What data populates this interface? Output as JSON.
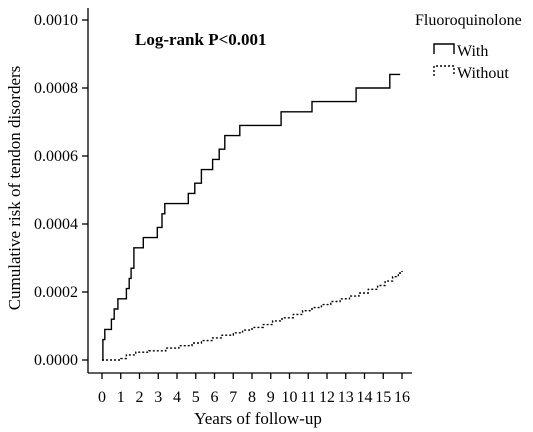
{
  "chart_data": {
    "type": "line",
    "title": "",
    "annotation": "Log-rank P<0.001",
    "xlabel": "Years of follow-up",
    "ylabel": "Cumulative risk of tendon disorders",
    "xlim": [
      0,
      16
    ],
    "ylim": [
      0,
      0.001
    ],
    "x_ticks": [
      0,
      1,
      2,
      3,
      4,
      5,
      6,
      7,
      8,
      9,
      10,
      11,
      12,
      13,
      14,
      15,
      16
    ],
    "x_tick_labels": [
      "0",
      "1",
      "2",
      "3",
      "4",
      "5",
      "6",
      "7",
      "8",
      "9",
      "10",
      "11",
      "12",
      "13",
      "14",
      "15",
      "16"
    ],
    "y_ticks": [
      0,
      0.0002,
      0.0004,
      0.0006,
      0.0008,
      0.001
    ],
    "y_tick_labels": [
      "0.0000",
      "0.0002",
      "0.0004",
      "0.0006",
      "0.0008",
      "0.0010"
    ],
    "grid": false,
    "legend": {
      "title": "Fluoroquinolone",
      "placement": "top-right"
    },
    "series": [
      {
        "name": "With",
        "style": "solid",
        "step": true,
        "x": [
          0,
          0.05,
          0.15,
          0.5,
          0.65,
          0.85,
          1.3,
          1.45,
          1.55,
          1.7,
          2.2,
          2.95,
          3.2,
          3.35,
          3.55,
          4.6,
          4.95,
          5.3,
          5.55,
          5.9,
          6.25,
          6.55,
          7.0,
          7.35,
          7.65,
          8.45,
          8.9,
          9.55,
          10.15,
          10.65,
          11.2,
          11.55,
          12.2,
          13.1,
          13.55,
          14.6,
          15.35,
          15.9
        ],
        "y": [
          0,
          6e-05,
          9e-05,
          0.00012,
          0.00015,
          0.00018,
          0.00021,
          0.00024,
          0.00027,
          0.00033,
          0.00036,
          0.00039,
          0.00043,
          0.00046,
          0.00046,
          0.00049,
          0.00052,
          0.00056,
          0.00056,
          0.00059,
          0.00062,
          0.00066,
          0.00066,
          0.00069,
          0.00069,
          0.00069,
          0.00069,
          0.00073,
          0.00073,
          0.00073,
          0.00076,
          0.00076,
          0.00076,
          0.00076,
          0.0008,
          0.0008,
          0.00084,
          0.00084
        ]
      },
      {
        "name": "Without",
        "style": "dotted",
        "step": true,
        "x": [
          0,
          1.0,
          1.3,
          1.8,
          2.5,
          3.4,
          4.1,
          4.8,
          5.3,
          5.9,
          6.4,
          7.0,
          7.5,
          8.0,
          8.6,
          9.1,
          9.6,
          10.2,
          10.7,
          11.2,
          11.7,
          12.2,
          12.7,
          13.2,
          13.7,
          14.2,
          14.7,
          15.1,
          15.5,
          15.8,
          16.0
        ],
        "y": [
          0,
          4e-06,
          1.5e-05,
          2.3e-05,
          2.7e-05,
          3.5e-05,
          4.2e-05,
          5e-05,
          5.7e-05,
          6.5e-05,
          7.3e-05,
          8e-05,
          8.8e-05,
          9.6e-05,
          0.000104,
          0.000115,
          0.000124,
          0.000134,
          0.000145,
          0.000154,
          0.000163,
          0.000172,
          0.00018,
          0.000188,
          0.000197,
          0.000208,
          0.000219,
          0.000232,
          0.000245,
          0.000256,
          0.000262
        ]
      }
    ]
  }
}
